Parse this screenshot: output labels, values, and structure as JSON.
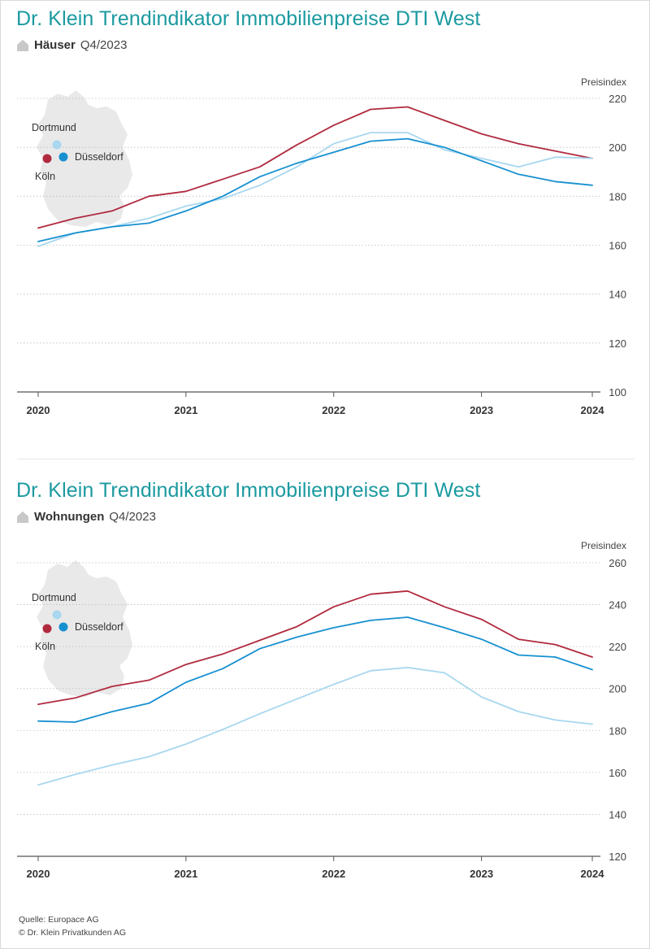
{
  "charts": [
    {
      "title": "Dr. Klein Trendindikator Immobilienpreise DTI West",
      "subtitle_kind": "Häuser",
      "subtitle_period": "Q4/2023",
      "unit_label": "Preisindex",
      "map_labels": {
        "dortmund": "Dortmund",
        "duesseldorf": "Düsseldorf",
        "koeln": "Köln"
      }
    },
    {
      "title": "Dr. Klein Trendindikator Immobilienpreise DTI West",
      "subtitle_kind": "Wohnungen",
      "subtitle_period": "Q4/2023",
      "unit_label": "Preisindex",
      "map_labels": {
        "dortmund": "Dortmund",
        "duesseldorf": "Düsseldorf",
        "koeln": "Köln"
      }
    }
  ],
  "chart_data": [
    {
      "type": "line",
      "x": [
        2020.0,
        2020.25,
        2020.5,
        2020.75,
        2021.0,
        2021.25,
        2021.5,
        2021.75,
        2022.0,
        2022.25,
        2022.5,
        2022.75,
        2023.0,
        2023.25,
        2023.5,
        2023.75
      ],
      "xticks": [
        "2020",
        "2021",
        "2022",
        "2023",
        "2024"
      ],
      "xtick_values": [
        2020,
        2021,
        2022,
        2023,
        2023.75
      ],
      "ylim": [
        100,
        220
      ],
      "yticks": [
        100,
        120,
        140,
        160,
        180,
        200,
        220
      ],
      "series": [
        {
          "key": "koeln",
          "color": "#b02a3e",
          "values": [
            167,
            171,
            174,
            180,
            182,
            187,
            192,
            201,
            209,
            215.5,
            216.5,
            211,
            205.5,
            201.5,
            198.5,
            195.5
          ]
        },
        {
          "key": "dortmund",
          "color": "#a8d7ef",
          "values": [
            159.5,
            165,
            167.5,
            171,
            176,
            179,
            184.5,
            192,
            201.5,
            206,
            206,
            199,
            195.5,
            192,
            196,
            195.5
          ]
        },
        {
          "key": "duesseldorf",
          "color": "#1790d0",
          "values": [
            161.5,
            165,
            167.5,
            169,
            174,
            180,
            188,
            193.5,
            198,
            202.5,
            203.5,
            200,
            194.5,
            189,
            186,
            184.5
          ]
        }
      ],
      "grid": true
    },
    {
      "type": "line",
      "x": [
        2020.0,
        2020.25,
        2020.5,
        2020.75,
        2021.0,
        2021.25,
        2021.5,
        2021.75,
        2022.0,
        2022.25,
        2022.5,
        2022.75,
        2023.0,
        2023.25,
        2023.5,
        2023.75
      ],
      "xticks": [
        "2020",
        "2021",
        "2022",
        "2023",
        "2024"
      ],
      "xtick_values": [
        2020,
        2021,
        2022,
        2023,
        2023.75
      ],
      "ylim": [
        120,
        260
      ],
      "yticks": [
        120,
        140,
        160,
        180,
        200,
        220,
        240,
        260
      ],
      "series": [
        {
          "key": "koeln",
          "color": "#b02a3e",
          "values": [
            192.5,
            195.5,
            201,
            204,
            211.5,
            216.5,
            223,
            229.5,
            239,
            245,
            246.5,
            239,
            233,
            223.5,
            221,
            215
          ]
        },
        {
          "key": "dortmund",
          "color": "#a8d7ef",
          "values": [
            154,
            159,
            163.5,
            167.5,
            173.5,
            180.5,
            188,
            195,
            202,
            208.5,
            210,
            207.5,
            196,
            189,
            185,
            183
          ]
        },
        {
          "key": "duesseldorf",
          "color": "#1790d0",
          "values": [
            184.5,
            184,
            189,
            193,
            203,
            209.5,
            219,
            224.5,
            229,
            232.5,
            234,
            229,
            223.5,
            216,
            215,
            209
          ]
        }
      ],
      "grid": true
    }
  ],
  "footer": {
    "source": "Quelle: Europace AG",
    "copyright": "© Dr. Klein Privatkunden AG"
  }
}
